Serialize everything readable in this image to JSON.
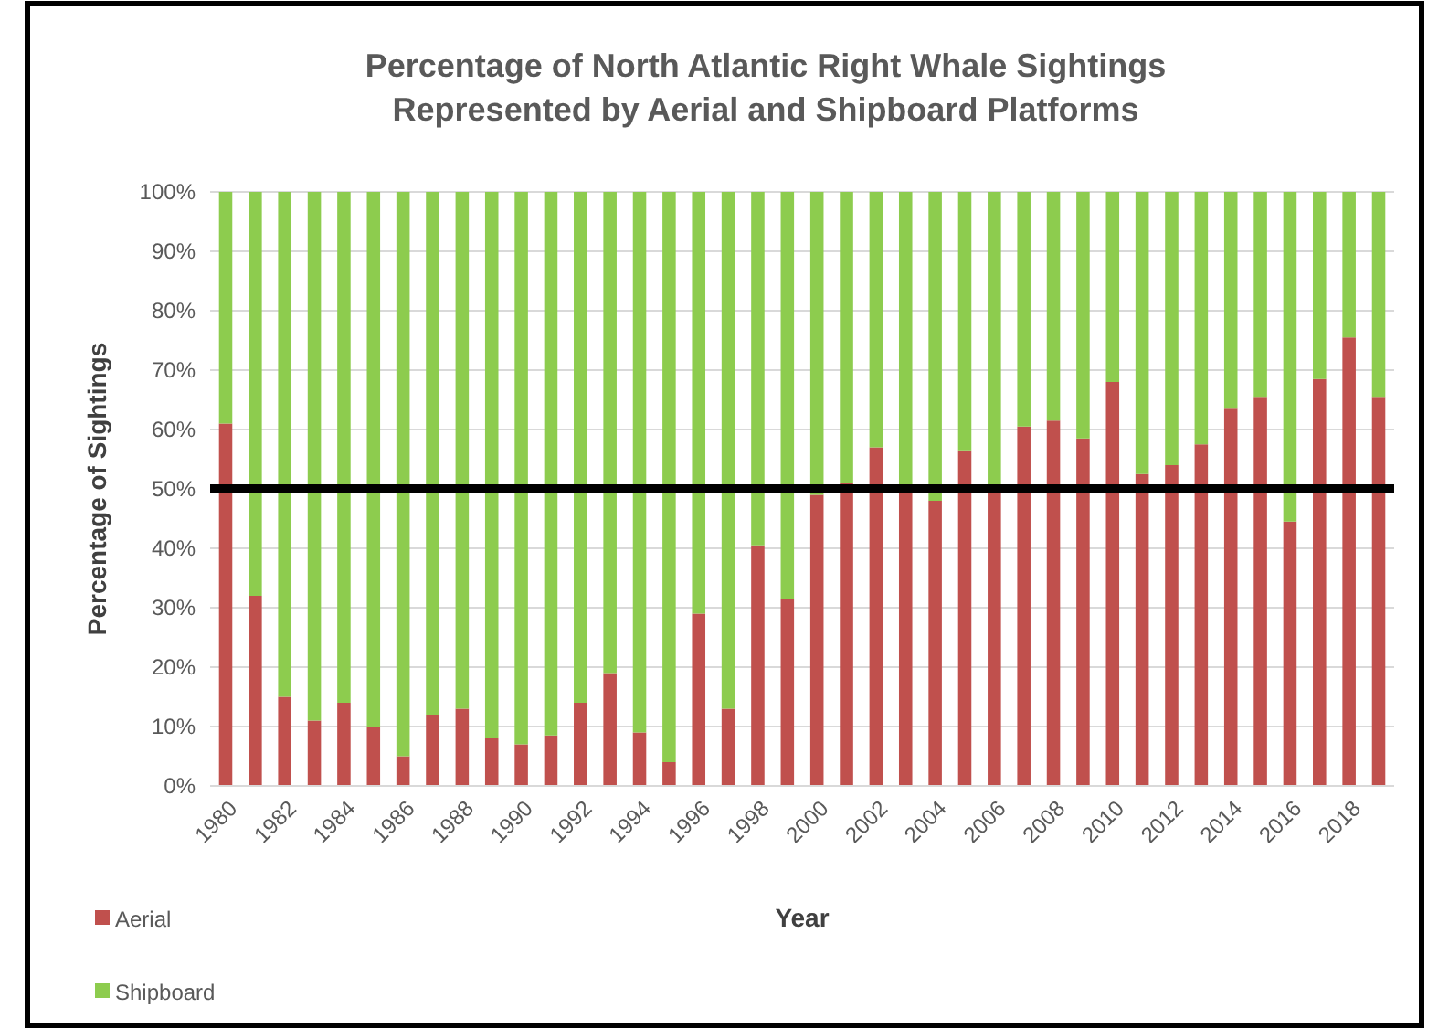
{
  "chart_data": {
    "type": "bar",
    "stacked": true,
    "title": "Percentage of North Atlantic Right Whale Sightings\nRepresented by Aerial and Shipboard Platforms",
    "xlabel": "Year",
    "ylabel": "Percentage of Sightings",
    "categories": [
      "1980",
      null,
      "1982",
      null,
      "1984",
      null,
      "1986",
      null,
      "1988",
      null,
      "1990",
      null,
      "1992",
      null,
      "1994",
      null,
      "1996",
      null,
      "1998",
      null,
      "2000",
      null,
      "2002",
      null,
      "2004",
      null,
      "2006",
      null,
      "2008",
      null,
      "2010",
      null,
      "2012",
      null,
      "2014",
      null,
      "2016",
      null,
      "2018",
      null
    ],
    "series": [
      {
        "name": "Aerial",
        "color": "#c0504d",
        "values": [
          61,
          32,
          15,
          11,
          14,
          10,
          5,
          12,
          13,
          8,
          7,
          8.5,
          14,
          19,
          9,
          4,
          29,
          13,
          40.5,
          31.5,
          49,
          51,
          57,
          50,
          48,
          56.5,
          50,
          60.5,
          61.5,
          58.5,
          68,
          52.5,
          54,
          57.5,
          63.5,
          65.5,
          44.5,
          68.5,
          75.5,
          65.5
        ]
      },
      {
        "name": "Shipboard",
        "color": "#8dcc4e",
        "values": [
          39,
          68,
          85,
          89,
          86,
          90,
          95,
          88,
          87,
          92,
          93,
          91.5,
          86,
          81,
          91,
          96,
          71,
          87,
          59.5,
          68.5,
          51,
          49,
          43,
          50,
          52,
          43.5,
          50,
          39.5,
          38.5,
          41.5,
          32,
          47.5,
          46,
          42.5,
          36.5,
          34.5,
          55.5,
          31.5,
          24.5,
          34.5
        ]
      }
    ],
    "ylim": [
      0,
      100
    ],
    "yticks": [
      {
        "value": 0,
        "label": "0%"
      },
      {
        "value": 10,
        "label": "10%"
      },
      {
        "value": 20,
        "label": "20%"
      },
      {
        "value": 30,
        "label": "30%"
      },
      {
        "value": 40,
        "label": "40%"
      },
      {
        "value": 50,
        "label": "50%"
      },
      {
        "value": 60,
        "label": "60%"
      },
      {
        "value": 70,
        "label": "70%"
      },
      {
        "value": 80,
        "label": "80%"
      },
      {
        "value": 90,
        "label": "90%"
      },
      {
        "value": 100,
        "label": "100%"
      }
    ],
    "grid": "y",
    "legend": "bottom left",
    "ref_lines": [
      {
        "axis": "y",
        "value": 50,
        "color": "#000000"
      }
    ]
  }
}
